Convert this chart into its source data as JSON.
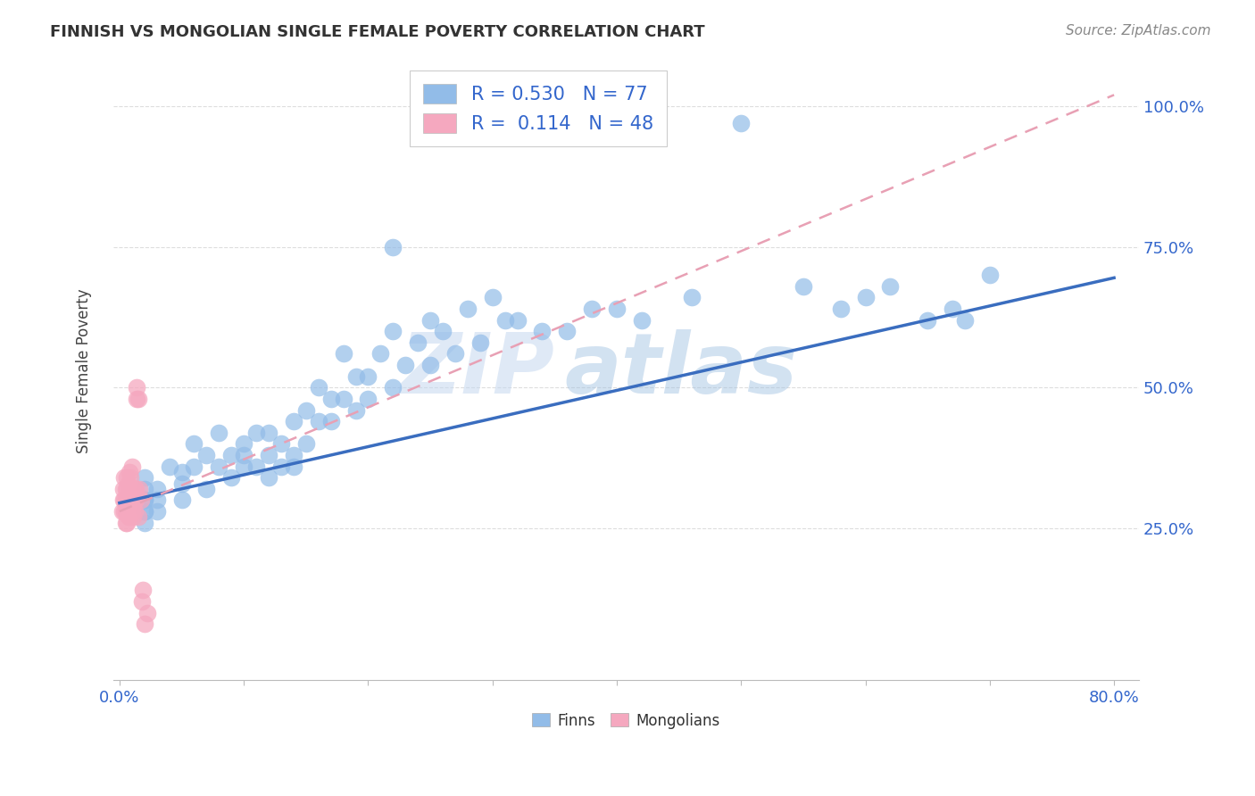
{
  "title": "FINNISH VS MONGOLIAN SINGLE FEMALE POVERTY CORRELATION CHART",
  "source": "Source: ZipAtlas.com",
  "ylabel": "Single Female Poverty",
  "xlim": [
    -0.005,
    0.82
  ],
  "ylim": [
    -0.02,
    1.08
  ],
  "yticks": [
    0.0,
    0.25,
    0.5,
    0.75,
    1.0
  ],
  "ytick_labels": [
    "",
    "25.0%",
    "50.0%",
    "75.0%",
    "100.0%"
  ],
  "finns_R": 0.53,
  "finns_N": 77,
  "mongolians_R": 0.114,
  "mongolians_N": 48,
  "finn_color": "#92bce8",
  "mongol_color": "#f5a8bf",
  "finn_line_color": "#3a6dbf",
  "mongol_line_color": "#e8a0b4",
  "watermark_text": "ZIP",
  "watermark_text2": "atlas",
  "finns_x": [
    0.02,
    0.02,
    0.02,
    0.02,
    0.02,
    0.02,
    0.02,
    0.03,
    0.03,
    0.03,
    0.04,
    0.05,
    0.05,
    0.05,
    0.06,
    0.06,
    0.07,
    0.07,
    0.08,
    0.08,
    0.09,
    0.09,
    0.1,
    0.1,
    0.1,
    0.11,
    0.11,
    0.12,
    0.12,
    0.12,
    0.13,
    0.13,
    0.14,
    0.14,
    0.14,
    0.15,
    0.15,
    0.16,
    0.16,
    0.17,
    0.17,
    0.18,
    0.18,
    0.19,
    0.19,
    0.2,
    0.2,
    0.21,
    0.22,
    0.22,
    0.23,
    0.24,
    0.25,
    0.25,
    0.26,
    0.27,
    0.28,
    0.29,
    0.3,
    0.31,
    0.32,
    0.34,
    0.36,
    0.38,
    0.4,
    0.42,
    0.46,
    0.5,
    0.55,
    0.58,
    0.6,
    0.62,
    0.65,
    0.67,
    0.68,
    0.7,
    0.22
  ],
  "finns_y": [
    0.28,
    0.3,
    0.32,
    0.28,
    0.3,
    0.34,
    0.26,
    0.32,
    0.3,
    0.28,
    0.36,
    0.35,
    0.33,
    0.3,
    0.4,
    0.36,
    0.38,
    0.32,
    0.42,
    0.36,
    0.38,
    0.34,
    0.4,
    0.36,
    0.38,
    0.42,
    0.36,
    0.42,
    0.38,
    0.34,
    0.4,
    0.36,
    0.44,
    0.38,
    0.36,
    0.46,
    0.4,
    0.5,
    0.44,
    0.48,
    0.44,
    0.56,
    0.48,
    0.52,
    0.46,
    0.48,
    0.52,
    0.56,
    0.6,
    0.5,
    0.54,
    0.58,
    0.62,
    0.54,
    0.6,
    0.56,
    0.64,
    0.58,
    0.66,
    0.62,
    0.62,
    0.6,
    0.6,
    0.64,
    0.64,
    0.62,
    0.66,
    0.97,
    0.68,
    0.64,
    0.66,
    0.68,
    0.62,
    0.64,
    0.62,
    0.7,
    0.75
  ],
  "mongols_x": [
    0.002,
    0.003,
    0.003,
    0.004,
    0.004,
    0.004,
    0.005,
    0.005,
    0.005,
    0.005,
    0.006,
    0.006,
    0.006,
    0.006,
    0.006,
    0.007,
    0.007,
    0.007,
    0.007,
    0.008,
    0.008,
    0.008,
    0.008,
    0.009,
    0.009,
    0.009,
    0.01,
    0.01,
    0.01,
    0.01,
    0.011,
    0.011,
    0.011,
    0.012,
    0.012,
    0.012,
    0.013,
    0.013,
    0.014,
    0.014,
    0.015,
    0.015,
    0.016,
    0.017,
    0.018,
    0.019,
    0.02,
    0.022
  ],
  "mongols_y": [
    0.28,
    0.3,
    0.32,
    0.28,
    0.3,
    0.34,
    0.26,
    0.28,
    0.3,
    0.32,
    0.26,
    0.28,
    0.3,
    0.32,
    0.34,
    0.27,
    0.29,
    0.31,
    0.33,
    0.27,
    0.29,
    0.31,
    0.35,
    0.28,
    0.3,
    0.34,
    0.28,
    0.3,
    0.32,
    0.36,
    0.27,
    0.29,
    0.31,
    0.28,
    0.3,
    0.32,
    0.3,
    0.32,
    0.48,
    0.5,
    0.27,
    0.48,
    0.32,
    0.3,
    0.12,
    0.14,
    0.08,
    0.1
  ],
  "finn_line_x": [
    0.0,
    0.8
  ],
  "finn_line_y": [
    0.295,
    0.695
  ],
  "mongol_line_x": [
    0.0,
    0.8
  ],
  "mongol_line_y": [
    0.28,
    1.02
  ]
}
